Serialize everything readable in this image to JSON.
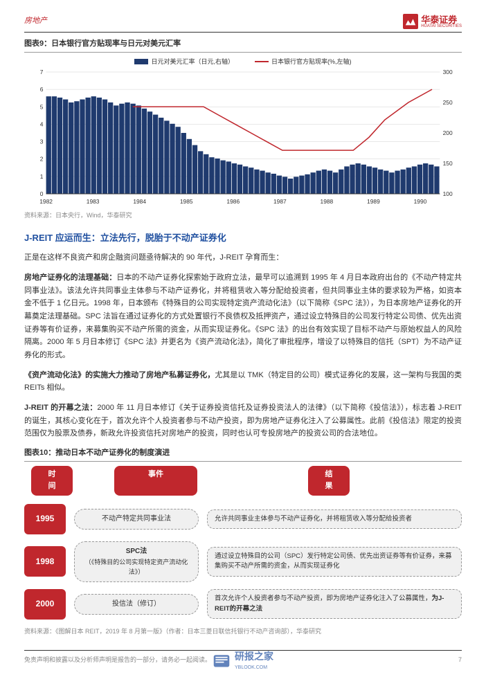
{
  "header": {
    "category": "房地产",
    "logo_cn": "华泰证券",
    "logo_en": "HUATAI SECURITIES"
  },
  "chart9": {
    "title": "图表9：日本银行官方贴现率与日元对美元汇率",
    "legend": [
      {
        "label": "日元对美元汇率（日元,右轴）",
        "type": "bar",
        "color": "#1f3a6e"
      },
      {
        "label": "日本银行官方贴现率(%,左轴)",
        "type": "line",
        "color": "#c0272d"
      }
    ],
    "left_axis": {
      "min": 0,
      "max": 7,
      "step": 1,
      "color": "#333"
    },
    "right_axis": {
      "min": 100,
      "max": 300,
      "step": 50,
      "color": "#333"
    },
    "x_labels": [
      "1982",
      "1983",
      "1984",
      "1985",
      "1986",
      "1987",
      "1988",
      "1989",
      "1990"
    ],
    "bar_color": "#1f3a6e",
    "line_color": "#c0272d",
    "grid_color": "#d0d0d0",
    "bg_color": "#ffffff",
    "bars": [
      260,
      260,
      258,
      255,
      250,
      252,
      255,
      258,
      260,
      258,
      255,
      250,
      245,
      248,
      250,
      248,
      245,
      240,
      235,
      230,
      225,
      220,
      215,
      210,
      200,
      190,
      180,
      170,
      165,
      160,
      158,
      155,
      153,
      150,
      148,
      145,
      143,
      140,
      138,
      135,
      133,
      130,
      128,
      125,
      128,
      130,
      132,
      135,
      138,
      140,
      138,
      135,
      140,
      145,
      148,
      150,
      148,
      145,
      143,
      140,
      138,
      135,
      138,
      140,
      143,
      145,
      148,
      150,
      148,
      145
    ],
    "line_points": [
      {
        "x": 0.22,
        "y": 5.0
      },
      {
        "x": 0.4,
        "y": 5.0
      },
      {
        "x": 0.44,
        "y": 4.5
      },
      {
        "x": 0.48,
        "y": 4.0
      },
      {
        "x": 0.52,
        "y": 3.5
      },
      {
        "x": 0.56,
        "y": 3.0
      },
      {
        "x": 0.6,
        "y": 2.5
      },
      {
        "x": 0.78,
        "y": 2.5
      },
      {
        "x": 0.82,
        "y": 3.25
      },
      {
        "x": 0.86,
        "y": 4.25
      },
      {
        "x": 0.92,
        "y": 5.25
      },
      {
        "x": 0.98,
        "y": 6.0
      }
    ],
    "source": "资料来源：日本央行，Wind，华泰研究"
  },
  "section": {
    "title": "J-REIT 应运而生：立法先行，脱胎于不动产证券化",
    "intro": "正是在这样不良资产和房企融资问题亟待解决的 90 年代，J-REIT 孕育而生：",
    "p1_lead": "房地产证券化的法理基础：",
    "p1": "日本的不动产证券化探索始于政府立法，最早可以追溯到 1995 年 4 月日本政府出台的《不动产特定共同事业法》。该法允许共同事业主体参与不动产证券化，并将租赁收入等分配给投资者，但共同事业主体的要求较为严格，如资本金不低于 1 亿日元。1998 年，日本颁布《特殊目的公司实现特定资产流动化法》（以下简称《SPC 法》），为日本房地产证券化的开幕奠定法理基础。SPC 法旨在通过证券化的方式处置银行不良债权及抵押资产，通过设立特殊目的公司发行特定公司债、优先出资证券等有价证券，来募集购买不动产所需的资金，从而实现证券化。《SPC 法》的出台有效实现了目标不动产与原始权益人的风险隔离。2000 年 5 月日本修订《SPC 法》并更名为《资产流动化法》，简化了审批程序，增设了以特殊目的信托（SPT）为不动产证券化的形式。",
    "p2_lead": "《资产流动化法》的实施大力推动了房地产私募证券化，",
    "p2": "尤其是以 TMK（特定目的公司）模式证券化的发展，这一架构与我国的类 REITs 相似。",
    "p3_lead": "J-REIT 的开幕之法：",
    "p3": "2000 年 11 月日本修订《关于证券投资信托及证券投资法人的法律》（以下简称《投信法》），标志着 J-REIT 的诞生，其核心变化在于，首次允许个人投资者参与不动产投资，即为房地产证券化注入了公募属性。此前《投信法》限定的投资范围仅为股票及债券，新政允许投资信托对房地产的投资，同时也认可专投房地产的投资公司的合法地位。"
  },
  "chart10": {
    "title": "图表10：推动日本不动产证券化的制度演进",
    "headers": {
      "time": "时间",
      "event": "事件",
      "result": "结果"
    },
    "rows": [
      {
        "year": "1995",
        "event": "不动产特定共同事业法",
        "result": "允许共同事业主体参与不动产证券化，并将租赁收入等分配给投资者"
      },
      {
        "year": "1998",
        "event": "SPC法\n（《特殊目的公司实现特定资产流动化法》）",
        "result": "通过设立特殊目的公司（SPC）发行特定公司债、优先出资证券等有价证券，来募集购买不动产所需的资金，从而实现证券化"
      },
      {
        "year": "2000",
        "event": "投信法（修订）",
        "result_pre": "首次允许个人投资者参与不动产投资，即为房地产证券化注入了公募属性，",
        "result_bold": "为J-REIT的开幕之法"
      }
    ],
    "source": "资料来源：《图解日本 REIT，2019 年 8 月第一版》（作者：日本三菱日联信托银行不动产咨询部），华泰研究"
  },
  "footer": {
    "disclaimer": "免责声明和披露以及分析师声明是报告的一部分，请务必一起阅读。",
    "page": "7",
    "watermark": "研报之家",
    "watermark_url": "YBLOOK.COM"
  }
}
